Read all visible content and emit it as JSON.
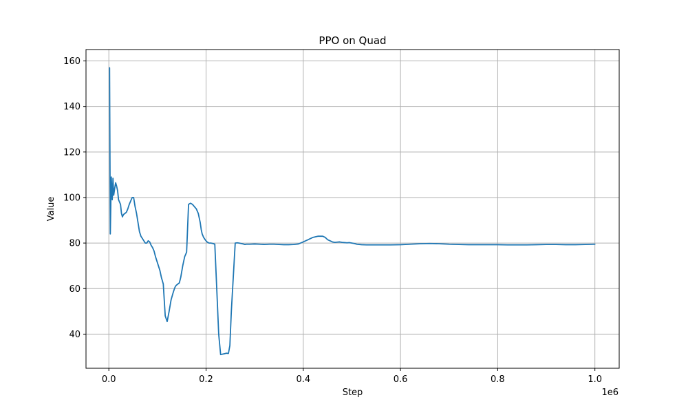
{
  "chart_data": {
    "type": "line",
    "title": "PPO on Quad",
    "xlabel": "Step",
    "ylabel": "Value",
    "x_offset_label": "1e6",
    "xlim": [
      -47000,
      1050000
    ],
    "ylim": [
      25,
      165
    ],
    "xticks": [
      0,
      200000,
      400000,
      600000,
      800000,
      1000000
    ],
    "xtick_labels": [
      "0.0",
      "0.2",
      "0.4",
      "0.6",
      "0.8",
      "1.0"
    ],
    "yticks": [
      40,
      60,
      80,
      100,
      120,
      140,
      160
    ],
    "ytick_labels": [
      "40",
      "60",
      "80",
      "100",
      "120",
      "140",
      "160"
    ],
    "grid": true,
    "colors": {
      "series": "#1f77b4",
      "grid": "#b0b0b0",
      "axes": "#000000"
    },
    "series": [
      {
        "x": [
          1500,
          3000,
          5000,
          7000,
          8500,
          10000,
          12000,
          14000,
          16000,
          18000,
          20000,
          22000,
          24000,
          26000,
          28000,
          30000,
          33000,
          36000,
          39000,
          42000,
          45000,
          48000,
          51000,
          54000,
          57000,
          60000,
          63000,
          66000,
          69000,
          72000,
          75000,
          78000,
          81000,
          84000,
          87000,
          90000,
          93000,
          96000,
          99000,
          102000,
          105000,
          108000,
          112000,
          116000,
          120000,
          124000,
          128000,
          132000,
          135000,
          137000,
          139000,
          142000,
          145000,
          148000,
          152000,
          156000,
          160000,
          164000,
          168000,
          172000,
          176000,
          180000,
          184000,
          188000,
          190000,
          192000,
          195000,
          198000,
          202000,
          206000,
          210000,
          214000,
          218000,
          222000,
          226000,
          230000,
          234000,
          238000,
          242000,
          246000,
          249000,
          252000,
          256000,
          260000,
          264000,
          268000,
          272000,
          276000,
          280000,
          283000,
          290000,
          300000,
          310000,
          320000,
          330000,
          340000,
          350000,
          360000,
          370000,
          380000,
          390000,
          400000,
          410000,
          420000,
          430000,
          440000,
          445000,
          450000,
          455000,
          460000,
          465000,
          470000,
          475000,
          480000,
          485000,
          490000,
          495000,
          500000,
          505000,
          510000,
          520000,
          530000,
          540000,
          550000,
          560000,
          570000,
          580000,
          600000,
          620000,
          640000,
          660000,
          680000,
          700000,
          720000,
          740000,
          760000,
          780000,
          800000,
          820000,
          840000,
          860000,
          880000,
          900000,
          920000,
          940000,
          960000,
          980000,
          1000000
        ],
        "y": [
          157.0,
          84.0,
          109.0,
          99.0,
          108.5,
          101.0,
          104.0,
          106.5,
          105.0,
          103.0,
          99.0,
          98.0,
          97.0,
          93.0,
          91.5,
          92.5,
          93.0,
          93.5,
          95.0,
          97.0,
          98.5,
          100.0,
          100.0,
          96.0,
          93.0,
          89.0,
          85.0,
          83.0,
          82.0,
          81.0,
          80.0,
          80.0,
          81.0,
          80.5,
          79.0,
          78.0,
          76.5,
          74.0,
          72.0,
          70.0,
          68.0,
          65.0,
          62.0,
          48.0,
          45.5,
          50.0,
          55.0,
          58.0,
          60.0,
          61.0,
          61.5,
          62.0,
          62.5,
          65.0,
          70.0,
          74.0,
          76.0,
          97.0,
          97.5,
          97.0,
          96.0,
          95.0,
          93.0,
          89.0,
          86.0,
          84.0,
          82.5,
          81.5,
          80.5,
          80.0,
          80.0,
          79.8,
          79.5,
          60.0,
          40.0,
          31.0,
          31.2,
          31.4,
          31.6,
          31.5,
          35.0,
          50.0,
          65.0,
          80.0,
          80.1,
          80.0,
          79.8,
          79.6,
          79.4,
          79.5,
          79.5,
          79.6,
          79.5,
          79.4,
          79.5,
          79.5,
          79.4,
          79.3,
          79.3,
          79.4,
          79.6,
          80.5,
          81.5,
          82.5,
          83.0,
          83.0,
          82.5,
          81.5,
          81.0,
          80.5,
          80.3,
          80.4,
          80.5,
          80.3,
          80.2,
          80.1,
          80.2,
          80.0,
          79.8,
          79.5,
          79.3,
          79.2,
          79.2,
          79.2,
          79.2,
          79.2,
          79.2,
          79.3,
          79.5,
          79.7,
          79.8,
          79.7,
          79.5,
          79.4,
          79.3,
          79.3,
          79.3,
          79.3,
          79.2,
          79.2,
          79.2,
          79.3,
          79.4,
          79.4,
          79.3,
          79.3,
          79.4,
          79.5
        ]
      }
    ]
  }
}
